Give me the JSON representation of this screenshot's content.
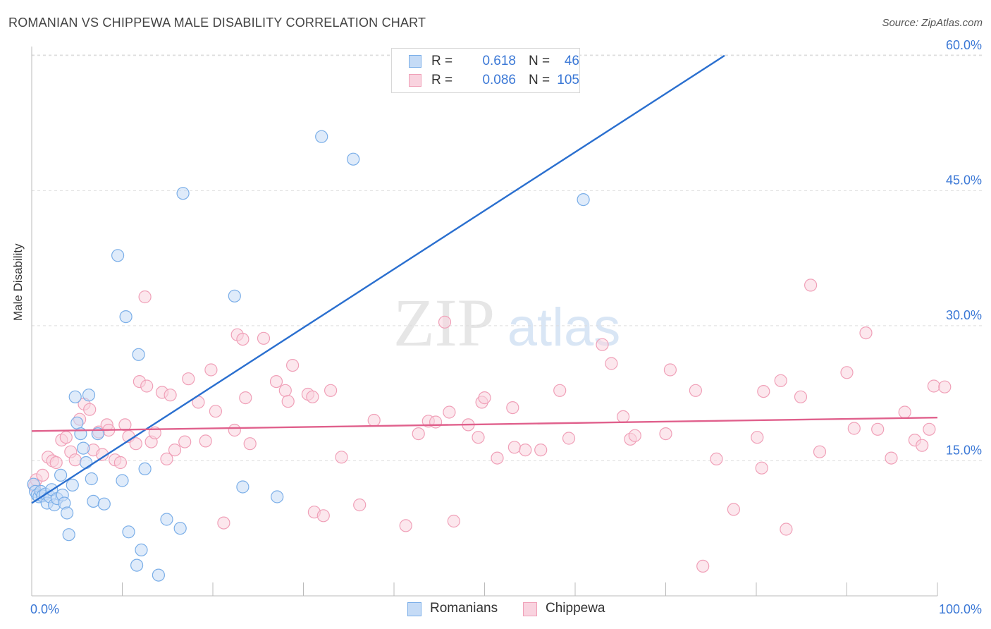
{
  "title": "ROMANIAN VS CHIPPEWA MALE DISABILITY CORRELATION CHART",
  "source": "Source: ZipAtlas.com",
  "watermark": {
    "zip": "ZIP",
    "atlas": "atlas"
  },
  "colors": {
    "romanians": "#7aaee8",
    "romanians_fill": "#c5dbf6",
    "romanians_line": "#2a6fcf",
    "chippewa": "#f0a0b8",
    "chippewa_fill": "#f9d3df",
    "chippewa_line": "#e0608c",
    "value_text": "#3b78d6"
  },
  "legend": {
    "rows": [
      {
        "r_label": "R =",
        "r_value": "0.618",
        "n_label": "N =",
        "n_value": "46"
      },
      {
        "r_label": "R =",
        "r_value": "0.086",
        "n_label": "N =",
        "n_value": "105"
      }
    ]
  },
  "bottom_legend": [
    "Romanians",
    "Chippewa"
  ],
  "chart_data": {
    "type": "scatter",
    "title": "ROMANIAN VS CHIPPEWA MALE DISABILITY CORRELATION CHART",
    "ylabel": "Male Disability",
    "xlabel": "",
    "xlim": [
      0,
      100
    ],
    "ylim": [
      0,
      61.5
    ],
    "x_tick_labels": [
      "0.0%",
      "100.0%"
    ],
    "y_ticks": [
      15,
      30,
      45,
      60
    ],
    "y_tick_labels": [
      "15.0%",
      "30.0%",
      "45.0%",
      "60.0%"
    ],
    "grid": true,
    "legend_position": "top-center",
    "series": [
      {
        "name": "Romanians",
        "r": 0.618,
        "n": 46,
        "trendline": {
          "x": [
            0,
            76.5
          ],
          "y": [
            10.3,
            60.0
          ]
        },
        "points": [
          [
            0.2,
            12.4
          ],
          [
            0.4,
            11.6
          ],
          [
            0.6,
            11.2
          ],
          [
            0.8,
            11.0
          ],
          [
            1.0,
            11.6
          ],
          [
            1.2,
            11.1
          ],
          [
            1.5,
            11.3
          ],
          [
            1.7,
            10.3
          ],
          [
            2.0,
            11.0
          ],
          [
            2.2,
            11.8
          ],
          [
            2.5,
            10.1
          ],
          [
            2.8,
            10.8
          ],
          [
            3.2,
            13.4
          ],
          [
            3.4,
            11.2
          ],
          [
            3.6,
            10.3
          ],
          [
            3.9,
            9.2
          ],
          [
            4.1,
            6.8
          ],
          [
            4.5,
            12.3
          ],
          [
            4.8,
            22.1
          ],
          [
            5.0,
            19.2
          ],
          [
            5.4,
            18.0
          ],
          [
            5.7,
            16.4
          ],
          [
            6.0,
            14.8
          ],
          [
            6.3,
            22.3
          ],
          [
            6.6,
            13.0
          ],
          [
            6.8,
            10.5
          ],
          [
            7.3,
            18.0
          ],
          [
            8.0,
            10.2
          ],
          [
            9.5,
            37.8
          ],
          [
            10.0,
            12.8
          ],
          [
            10.4,
            31.0
          ],
          [
            10.7,
            7.1
          ],
          [
            11.6,
            3.4
          ],
          [
            11.8,
            26.8
          ],
          [
            12.1,
            5.1
          ],
          [
            12.5,
            14.1
          ],
          [
            14.0,
            2.3
          ],
          [
            14.9,
            8.5
          ],
          [
            16.4,
            7.5
          ],
          [
            16.7,
            44.7
          ],
          [
            22.4,
            33.3
          ],
          [
            23.3,
            12.1
          ],
          [
            27.1,
            11.0
          ],
          [
            32.0,
            51.0
          ],
          [
            35.5,
            48.5
          ],
          [
            60.9,
            44.0
          ]
        ]
      },
      {
        "name": "Chippewa",
        "r": 0.086,
        "n": 105,
        "trendline": {
          "x": [
            0,
            100
          ],
          "y": [
            18.3,
            19.8
          ]
        },
        "points": [
          [
            0.3,
            12.2
          ],
          [
            0.5,
            12.9
          ],
          [
            1.2,
            13.4
          ],
          [
            1.8,
            15.4
          ],
          [
            2.3,
            15.0
          ],
          [
            2.7,
            14.8
          ],
          [
            3.3,
            17.3
          ],
          [
            3.8,
            17.6
          ],
          [
            4.3,
            16.0
          ],
          [
            4.8,
            15.1
          ],
          [
            5.3,
            19.6
          ],
          [
            5.8,
            21.3
          ],
          [
            6.4,
            20.7
          ],
          [
            6.8,
            16.2
          ],
          [
            7.4,
            18.2
          ],
          [
            7.8,
            15.7
          ],
          [
            8.3,
            19.0
          ],
          [
            8.5,
            18.4
          ],
          [
            9.2,
            15.1
          ],
          [
            9.8,
            14.8
          ],
          [
            10.3,
            19.0
          ],
          [
            10.7,
            17.7
          ],
          [
            11.5,
            16.9
          ],
          [
            11.9,
            23.8
          ],
          [
            12.5,
            33.2
          ],
          [
            12.7,
            23.3
          ],
          [
            13.2,
            17.1
          ],
          [
            13.6,
            18.1
          ],
          [
            14.4,
            22.6
          ],
          [
            14.9,
            15.2
          ],
          [
            15.3,
            22.3
          ],
          [
            15.8,
            16.2
          ],
          [
            16.9,
            17.1
          ],
          [
            17.3,
            24.1
          ],
          [
            18.4,
            21.5
          ],
          [
            19.2,
            17.2
          ],
          [
            19.8,
            25.1
          ],
          [
            20.3,
            20.5
          ],
          [
            21.2,
            8.1
          ],
          [
            22.4,
            18.4
          ],
          [
            22.7,
            29.0
          ],
          [
            23.3,
            28.5
          ],
          [
            23.6,
            22.0
          ],
          [
            24.1,
            16.9
          ],
          [
            25.6,
            28.6
          ],
          [
            27.0,
            23.8
          ],
          [
            28.0,
            22.8
          ],
          [
            28.3,
            21.6
          ],
          [
            28.8,
            25.6
          ],
          [
            30.5,
            22.4
          ],
          [
            31.0,
            22.1
          ],
          [
            31.2,
            9.3
          ],
          [
            32.2,
            8.9
          ],
          [
            33.0,
            22.8
          ],
          [
            34.2,
            15.4
          ],
          [
            36.2,
            10.1
          ],
          [
            37.8,
            19.5
          ],
          [
            41.3,
            7.8
          ],
          [
            42.7,
            18.0
          ],
          [
            43.8,
            19.4
          ],
          [
            44.6,
            19.3
          ],
          [
            45.6,
            30.4
          ],
          [
            46.1,
            20.4
          ],
          [
            46.6,
            8.3
          ],
          [
            48.2,
            19.0
          ],
          [
            49.3,
            17.6
          ],
          [
            49.7,
            21.5
          ],
          [
            50.0,
            22.0
          ],
          [
            51.4,
            15.3
          ],
          [
            53.1,
            20.9
          ],
          [
            53.3,
            16.5
          ],
          [
            54.5,
            16.2
          ],
          [
            56.2,
            16.2
          ],
          [
            58.3,
            22.8
          ],
          [
            59.3,
            17.5
          ],
          [
            63.0,
            27.9
          ],
          [
            64.0,
            25.8
          ],
          [
            65.3,
            19.9
          ],
          [
            66.1,
            17.4
          ],
          [
            66.6,
            17.8
          ],
          [
            70.0,
            18.0
          ],
          [
            70.5,
            25.1
          ],
          [
            73.3,
            22.8
          ],
          [
            74.1,
            3.3
          ],
          [
            75.6,
            15.2
          ],
          [
            77.5,
            9.6
          ],
          [
            80.1,
            17.6
          ],
          [
            80.6,
            14.2
          ],
          [
            80.8,
            22.7
          ],
          [
            82.7,
            23.9
          ],
          [
            83.3,
            7.4
          ],
          [
            84.9,
            22.1
          ],
          [
            86.0,
            34.5
          ],
          [
            87.0,
            16.0
          ],
          [
            90.0,
            24.8
          ],
          [
            90.8,
            18.6
          ],
          [
            92.1,
            29.2
          ],
          [
            93.4,
            18.5
          ],
          [
            94.9,
            15.3
          ],
          [
            96.4,
            20.4
          ],
          [
            97.5,
            17.3
          ],
          [
            98.3,
            16.7
          ],
          [
            99.1,
            18.5
          ],
          [
            99.6,
            23.3
          ],
          [
            100.8,
            23.2
          ]
        ]
      }
    ]
  }
}
